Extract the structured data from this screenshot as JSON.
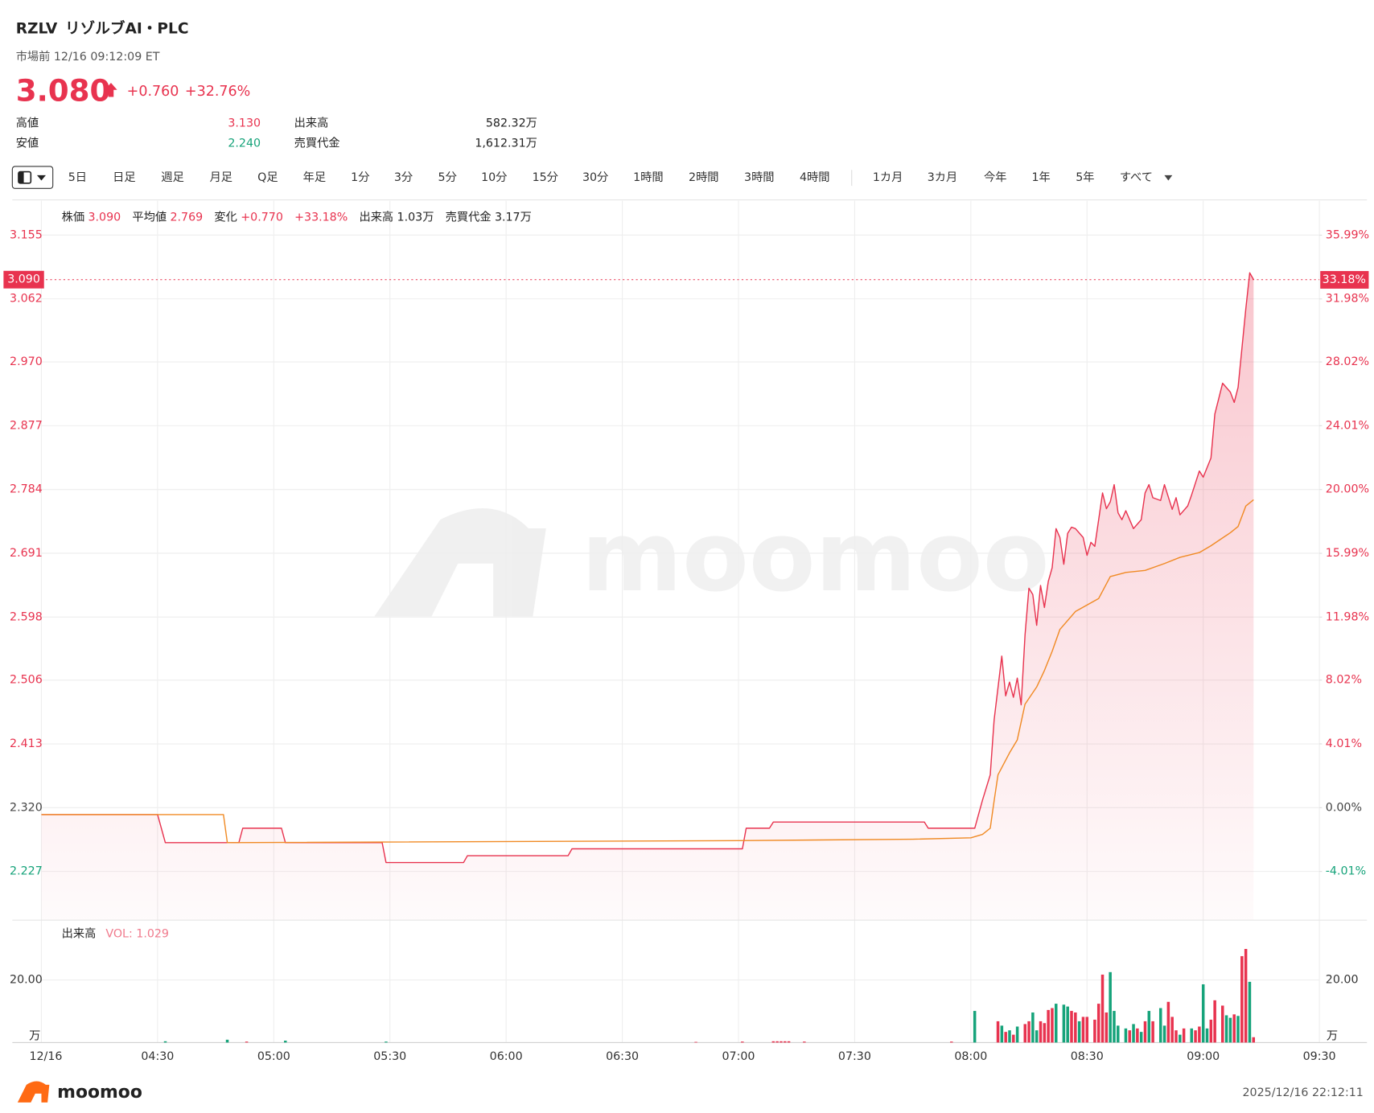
{
  "header": {
    "symbol": "RZLV",
    "name": "リゾルブAI・PLC",
    "session": "市場前 12/16 09:12:09 ET",
    "price": "3.080",
    "change": "+0.760",
    "change_pct": "+32.76%",
    "stats": [
      {
        "label": "高値",
        "value": "3.130",
        "tone": "up"
      },
      {
        "label": "出来高",
        "value": "582.32万",
        "tone": "flat"
      },
      {
        "label": "安値",
        "value": "2.240",
        "tone": "down"
      },
      {
        "label": "売買代金",
        "value": "1,612.31万",
        "tone": "flat"
      }
    ]
  },
  "tabs": [
    "5日",
    "日足",
    "週足",
    "月足",
    "Q足",
    "年足",
    "1分",
    "3分",
    "5分",
    "10分",
    "15分",
    "30分",
    "1時間",
    "2時間",
    "3時間",
    "4時間",
    "1カ月",
    "3カ月",
    "今年",
    "1年",
    "5年",
    "すべて"
  ],
  "info": {
    "price": "3.090",
    "avg": "2.769",
    "change_label": "変化",
    "change": "+0.770",
    "change_pct": "+33.18%",
    "vol_label": "出来高",
    "vol": "1.03万",
    "amount_label": "売買代金",
    "amount": "3.17万"
  },
  "chart_data": {
    "type": "line",
    "xlim": [
      "04:00",
      "09:30"
    ],
    "xticks": [
      {
        "value": "04:00",
        "label": "12/16"
      },
      "04:30",
      "05:00",
      "05:30",
      "06:00",
      "06:30",
      "07:00",
      "07:30",
      "08:00",
      "08:30",
      "09:00",
      "09:30"
    ],
    "ylim": [
      2.156,
      3.205
    ],
    "yticks": [
      3.155,
      3.062,
      {
        "value": 2.97,
        "label": "2.970"
      },
      2.877,
      2.784,
      2.691,
      2.598,
      2.506,
      2.413,
      {
        "value": 2.32,
        "label": "2.320"
      },
      2.227
    ],
    "y2lim": [
      -7.07,
      38.15
    ],
    "y2ticks": [
      {
        "value": 35.99,
        "label": "35.99%"
      },
      {
        "value": 31.98,
        "label": "31.98%"
      },
      {
        "value": 28.02,
        "label": "28.02%"
      },
      {
        "value": 24.01,
        "label": "24.01%"
      },
      {
        "value": 20,
        "label": "20.00%"
      },
      {
        "value": 15.99,
        "label": "15.99%"
      },
      {
        "value": 11.98,
        "label": "11.98%"
      },
      {
        "value": 8.02,
        "label": "8.02%"
      },
      {
        "value": 4.01,
        "label": "4.01%"
      },
      {
        "value": 0,
        "label": "0.00%"
      },
      {
        "value": -4.01,
        "label": "-4.01%"
      }
    ],
    "grid": true,
    "up_color": "#e8334f",
    "down_color": "#16a37a",
    "current": {
      "value": 3.09,
      "label": "3.090"
    },
    "current_pct": {
      "value": 33.18,
      "label": "33.18%"
    },
    "series": [
      {
        "name": "株価",
        "color": "#e8334f",
        "x": [
          "04:00",
          "04:30",
          "04:32",
          "04:51",
          "04:52",
          "05:02",
          "05:03",
          "05:28",
          "05:29",
          "05:49",
          "05:50",
          "06:16",
          "06:17",
          "07:01",
          "07:02",
          "07:08",
          "07:09",
          "07:48",
          "07:49",
          "08:01",
          "08:03",
          "08:05",
          "08:06",
          "08:08",
          "08:09",
          "08:10",
          "08:11",
          "08:12",
          "08:13",
          "08:14",
          "08:15",
          "08:16",
          "08:17",
          "08:18",
          "08:19",
          "08:20",
          "08:21",
          "08:22",
          "08:23",
          "08:24",
          "08:25",
          "08:26",
          "08:27",
          "08:29",
          "08:30",
          "08:31",
          "08:32",
          "08:34",
          "08:35",
          "08:36",
          "08:37",
          "08:38",
          "08:39",
          "08:40",
          "08:42",
          "08:44",
          "08:45",
          "08:46",
          "08:47",
          "08:49",
          "08:50",
          "08:52",
          "08:53",
          "08:54",
          "08:56",
          "08:57",
          "08:59",
          "09:00",
          "09:02",
          "09:03",
          "09:05",
          "09:07",
          "09:08",
          "09:09",
          "09:11",
          "09:12",
          "09:13"
        ],
        "values": [
          2.31,
          2.31,
          2.269,
          2.269,
          2.29,
          2.29,
          2.269,
          2.269,
          2.24,
          2.24,
          2.25,
          2.25,
          2.26,
          2.26,
          2.29,
          2.29,
          2.299,
          2.299,
          2.29,
          2.29,
          2.331,
          2.368,
          2.448,
          2.541,
          2.483,
          2.503,
          2.481,
          2.509,
          2.47,
          2.572,
          2.64,
          2.631,
          2.586,
          2.644,
          2.612,
          2.65,
          2.67,
          2.727,
          2.714,
          2.675,
          2.72,
          2.729,
          2.727,
          2.714,
          2.688,
          2.707,
          2.701,
          2.779,
          2.756,
          2.766,
          2.791,
          2.75,
          2.74,
          2.753,
          2.727,
          2.74,
          2.779,
          2.791,
          2.772,
          2.768,
          2.791,
          2.755,
          2.772,
          2.747,
          2.76,
          2.776,
          2.811,
          2.802,
          2.83,
          2.894,
          2.939,
          2.926,
          2.911,
          2.933,
          3.048,
          3.1,
          3.09
        ]
      },
      {
        "name": "平均値",
        "color": "#f08a24",
        "x": [
          "04:00",
          "04:47",
          "04:48",
          "07:00",
          "07:45",
          "08:00",
          "08:03",
          "08:05",
          "08:06",
          "08:07",
          "08:10",
          "08:12",
          "08:14",
          "08:17",
          "08:19",
          "08:21",
          "08:23",
          "08:27",
          "08:33",
          "08:36",
          "08:40",
          "08:45",
          "08:50",
          "08:54",
          "08:59",
          "09:02",
          "09:07",
          "09:09",
          "09:11",
          "09:13"
        ],
        "values": [
          2.31,
          2.31,
          2.269,
          2.272,
          2.274,
          2.276,
          2.281,
          2.29,
          2.33,
          2.368,
          2.4,
          2.419,
          2.471,
          2.496,
          2.52,
          2.548,
          2.58,
          2.606,
          2.625,
          2.657,
          2.663,
          2.666,
          2.676,
          2.685,
          2.692,
          2.702,
          2.721,
          2.73,
          2.76,
          2.769
        ]
      }
    ],
    "vol_title": "出来高",
    "vol_label": "VOL: 1.029",
    "vol_unit": "万",
    "vol_ylim": [
      0,
      37.7
    ],
    "vol_yticks": [
      {
        "value": 20,
        "label": "20.00"
      }
    ],
    "volume": {
      "x": [
        "04:32",
        "04:48",
        "04:53",
        "05:03",
        "05:29",
        "06:49",
        "07:01",
        "07:09",
        "07:10",
        "07:11",
        "07:12",
        "07:13",
        "07:17",
        "07:55",
        "08:01",
        "08:07",
        "08:08",
        "08:09",
        "08:10",
        "08:11",
        "08:12",
        "08:14",
        "08:15",
        "08:16",
        "08:17",
        "08:18",
        "08:19",
        "08:20",
        "08:21",
        "08:22",
        "08:24",
        "08:25",
        "08:26",
        "08:27",
        "08:28",
        "08:29",
        "08:30",
        "08:32",
        "08:33",
        "08:34",
        "08:35",
        "08:36",
        "08:37",
        "08:38",
        "08:40",
        "08:41",
        "08:42",
        "08:43",
        "08:44",
        "08:45",
        "08:46",
        "08:47",
        "08:49",
        "08:50",
        "08:51",
        "08:52",
        "08:53",
        "08:54",
        "08:55",
        "08:57",
        "08:58",
        "08:59",
        "09:00",
        "09:01",
        "09:02",
        "09:03",
        "09:05",
        "09:06",
        "09:07",
        "09:08",
        "09:09",
        "09:10",
        "09:11",
        "09:12",
        "09:13"
      ],
      "values": [
        0.4,
        0.9,
        0.3,
        0.6,
        0.3,
        0.2,
        0.3,
        0.4,
        0.4,
        0.4,
        0.4,
        0.4,
        0.3,
        0.3,
        10.1,
        6.8,
        5.4,
        3.4,
        3.9,
        2.5,
        5.1,
        5.9,
        6.8,
        9.6,
        3.9,
        6.8,
        6.2,
        10.4,
        11,
        12.4,
        12.1,
        11.5,
        10.1,
        9.6,
        6.8,
        8.2,
        8.2,
        7.3,
        12.4,
        21.7,
        9.6,
        22.5,
        10.1,
        5.4,
        4.5,
        3.9,
        5.9,
        4.5,
        3.4,
        6.8,
        10.1,
        6.8,
        11,
        5.4,
        13,
        8.2,
        3.9,
        2.5,
        4.5,
        4.5,
        3.9,
        5.1,
        18.6,
        4.5,
        7.3,
        13.5,
        11.8,
        8.7,
        7.9,
        9,
        8.5,
        27.6,
        29.9,
        19.4,
        1.7
      ],
      "colors": [
        "#16a37a",
        "#16a37a",
        "#e8334f",
        "#16a37a",
        "#16a37a",
        "#e8334f",
        "#e8334f",
        "#e8334f",
        "#e8334f",
        "#e8334f",
        "#e8334f",
        "#e8334f",
        "#e8334f",
        "#e8334f",
        "#16a37a",
        "#e8334f",
        "#16a37a",
        "#e8334f",
        "#16a37a",
        "#e8334f",
        "#16a37a",
        "#e8334f",
        "#e8334f",
        "#16a37a",
        "#16a37a",
        "#e8334f",
        "#e8334f",
        "#e8334f",
        "#e8334f",
        "#16a37a",
        "#16a37a",
        "#16a37a",
        "#e8334f",
        "#e8334f",
        "#16a37a",
        "#e8334f",
        "#e8334f",
        "#e8334f",
        "#e8334f",
        "#e8334f",
        "#e8334f",
        "#16a37a",
        "#16a37a",
        "#16a37a",
        "#16a37a",
        "#e8334f",
        "#16a37a",
        "#e8334f",
        "#16a37a",
        "#e8334f",
        "#16a37a",
        "#e8334f",
        "#16a37a",
        "#16a37a",
        "#e8334f",
        "#e8334f",
        "#e8334f",
        "#16a37a",
        "#e8334f",
        "#16a37a",
        "#e8334f",
        "#e8334f",
        "#16a37a",
        "#16a37a",
        "#e8334f",
        "#e8334f",
        "#e8334f",
        "#16a37a",
        "#16a37a",
        "#e8334f",
        "#16a37a",
        "#e8334f",
        "#e8334f",
        "#16a37a",
        "#e8334f"
      ]
    }
  },
  "footer": {
    "brand": "moomoo",
    "timestamp": "2025/12/16 22:12:11"
  }
}
